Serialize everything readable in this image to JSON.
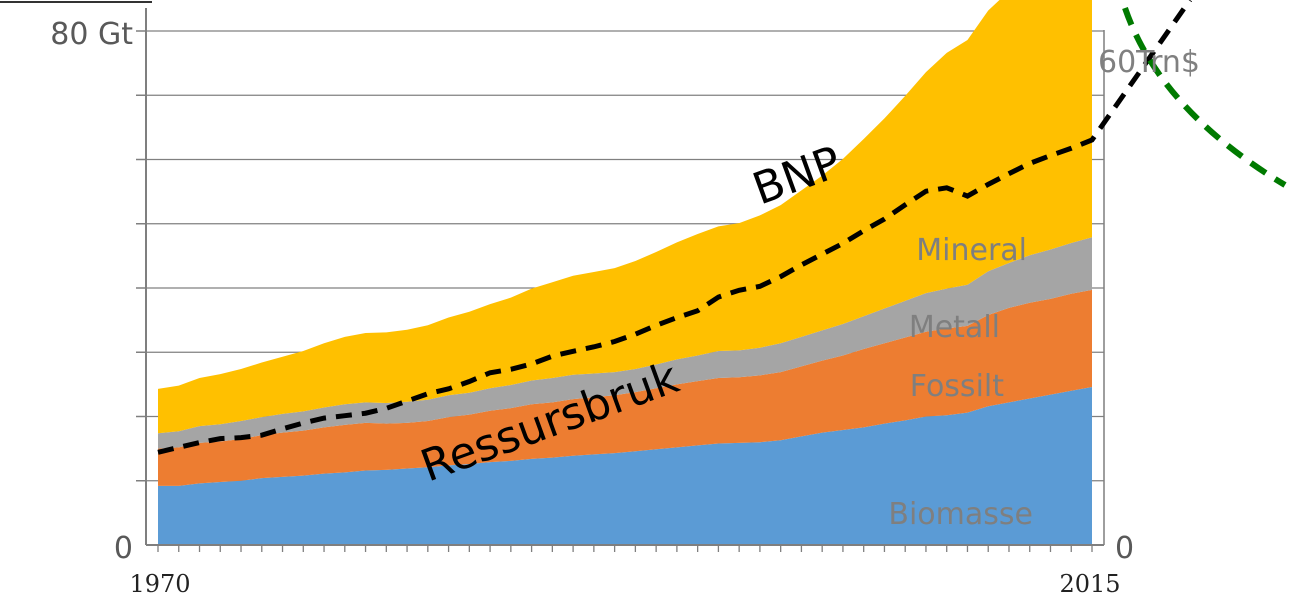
{
  "chart_data": {
    "type": "area",
    "x": [
      1970,
      1971,
      1972,
      1973,
      1974,
      1975,
      1976,
      1977,
      1978,
      1979,
      1980,
      1981,
      1982,
      1983,
      1984,
      1985,
      1986,
      1987,
      1988,
      1989,
      1990,
      1991,
      1992,
      1993,
      1994,
      1995,
      1996,
      1997,
      1998,
      1999,
      2000,
      2001,
      2002,
      2003,
      2004,
      2005,
      2006,
      2007,
      2008,
      2009,
      2010,
      2011,
      2012,
      2013,
      2014,
      2015
    ],
    "xlabels": [
      "1970",
      "2015"
    ],
    "xlim": [
      1970,
      2015
    ],
    "y_left": {
      "ticks": [
        "80 Gt",
        "0"
      ],
      "ylim": [
        0,
        80
      ]
    },
    "y_right": {
      "ticks": [
        "60Trn$",
        "0"
      ],
      "ylim": [
        0,
        60
      ]
    },
    "grid": true,
    "series": [
      {
        "name": "Biomasse",
        "color": "#5B9BD5",
        "values": [
          9.2,
          9.2,
          9.6,
          9.8,
          10.0,
          10.4,
          10.6,
          10.8,
          11.1,
          11.3,
          11.6,
          11.7,
          11.9,
          12.1,
          12.4,
          12.6,
          12.9,
          13.1,
          13.4,
          13.6,
          13.9,
          14.1,
          14.3,
          14.6,
          14.9,
          15.2,
          15.5,
          15.8,
          15.9,
          16.0,
          16.3,
          16.9,
          17.5,
          17.9,
          18.3,
          18.9,
          19.4,
          20.0,
          20.2,
          20.6,
          21.6,
          22.2,
          22.8,
          23.4,
          24.0,
          24.6
        ]
      },
      {
        "name": "Fossilt",
        "color": "#ED7D31",
        "values": [
          5.8,
          6.0,
          6.3,
          6.3,
          6.5,
          6.7,
          6.9,
          7.0,
          7.2,
          7.4,
          7.4,
          7.2,
          7.1,
          7.2,
          7.5,
          7.7,
          8.0,
          8.2,
          8.5,
          8.6,
          8.8,
          8.9,
          9.0,
          9.2,
          9.5,
          9.8,
          10.0,
          10.2,
          10.2,
          10.4,
          10.6,
          10.9,
          11.2,
          11.6,
          12.2,
          12.5,
          12.9,
          13.2,
          13.5,
          13.5,
          14.2,
          14.7,
          14.9,
          14.9,
          15.1,
          15.1
        ]
      },
      {
        "name": "Metall",
        "color": "#A5A5A5",
        "values": [
          2.4,
          2.5,
          2.6,
          2.7,
          2.8,
          2.8,
          2.9,
          3.0,
          3.1,
          3.2,
          3.2,
          3.2,
          3.3,
          3.3,
          3.4,
          3.4,
          3.5,
          3.6,
          3.7,
          3.8,
          3.8,
          3.7,
          3.6,
          3.6,
          3.7,
          3.9,
          4.0,
          4.2,
          4.2,
          4.3,
          4.5,
          4.6,
          4.7,
          4.9,
          5.1,
          5.4,
          5.7,
          6.0,
          6.2,
          6.4,
          6.8,
          7.0,
          7.4,
          7.7,
          7.9,
          8.2
        ]
      },
      {
        "name": "Mineral",
        "color": "#FFC000",
        "values": [
          6.9,
          7.1,
          7.5,
          7.8,
          8.1,
          8.5,
          8.9,
          9.4,
          10.0,
          10.5,
          10.8,
          11.0,
          11.2,
          11.6,
          12.1,
          12.6,
          13.1,
          13.6,
          14.3,
          14.9,
          15.4,
          15.8,
          16.2,
          16.8,
          17.5,
          18.2,
          18.9,
          19.4,
          19.8,
          20.6,
          21.5,
          22.8,
          24.1,
          25.7,
          27.6,
          29.6,
          31.9,
          34.4,
          36.7,
          38.1,
          40.6,
          42.3,
          44.5,
          46.3,
          48.4,
          50.4
        ]
      }
    ],
    "overlay_line": {
      "name": "BNP",
      "color": "#000000",
      "axis": "right",
      "values": [
        19.0,
        20.0,
        21.0,
        21.8,
        22.0,
        22.5,
        23.8,
        25.0,
        26.0,
        26.5,
        27.0,
        28.0,
        29.5,
        31.0,
        32.0,
        33.5,
        35.3,
        36.0,
        37.1,
        38.7,
        39.7,
        40.6,
        41.7,
        43.2,
        45.0,
        46.6,
        48.0,
        50.8,
        52.2,
        53.0,
        55.0,
        57.4,
        59.6,
        61.8,
        64.4,
        66.8,
        69.7,
        72.5,
        73.2,
        71.5,
        73.9,
        76.1,
        78.2,
        79.8,
        81.3,
        83.0
      ]
    },
    "annotations": [
      "BNP",
      "Ressursbruk",
      "Mineral",
      "Metall",
      "Fossilt",
      "Biomasse"
    ],
    "green_line_color": "#007A00"
  }
}
